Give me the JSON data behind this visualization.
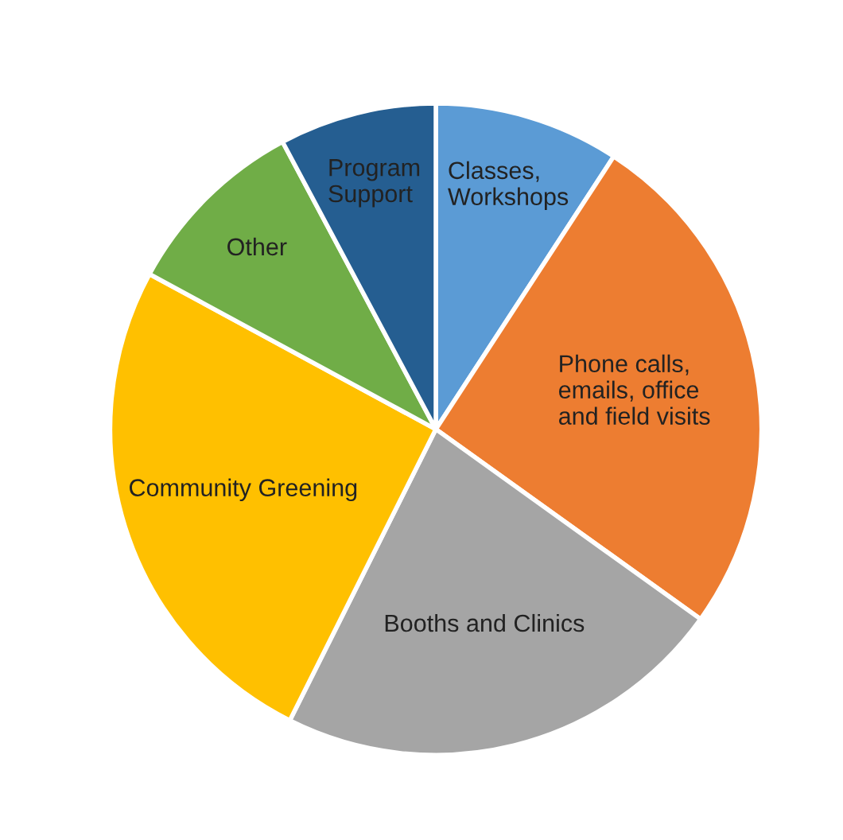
{
  "chart_data": {
    "type": "pie",
    "categories": [
      "Classes,\nWorkshops",
      "Phone calls,\nemails, office\nand field visits",
      "Booths and Clinics",
      "Community Greening",
      "Other",
      "Program\nSupport"
    ],
    "values": [
      9.2,
      25.7,
      22.5,
      25.5,
      9.3,
      7.8
    ],
    "colors": [
      "#5b9bd5",
      "#ed7d31",
      "#a5a5a5",
      "#ffc000",
      "#70ad47",
      "#255e91"
    ]
  }
}
